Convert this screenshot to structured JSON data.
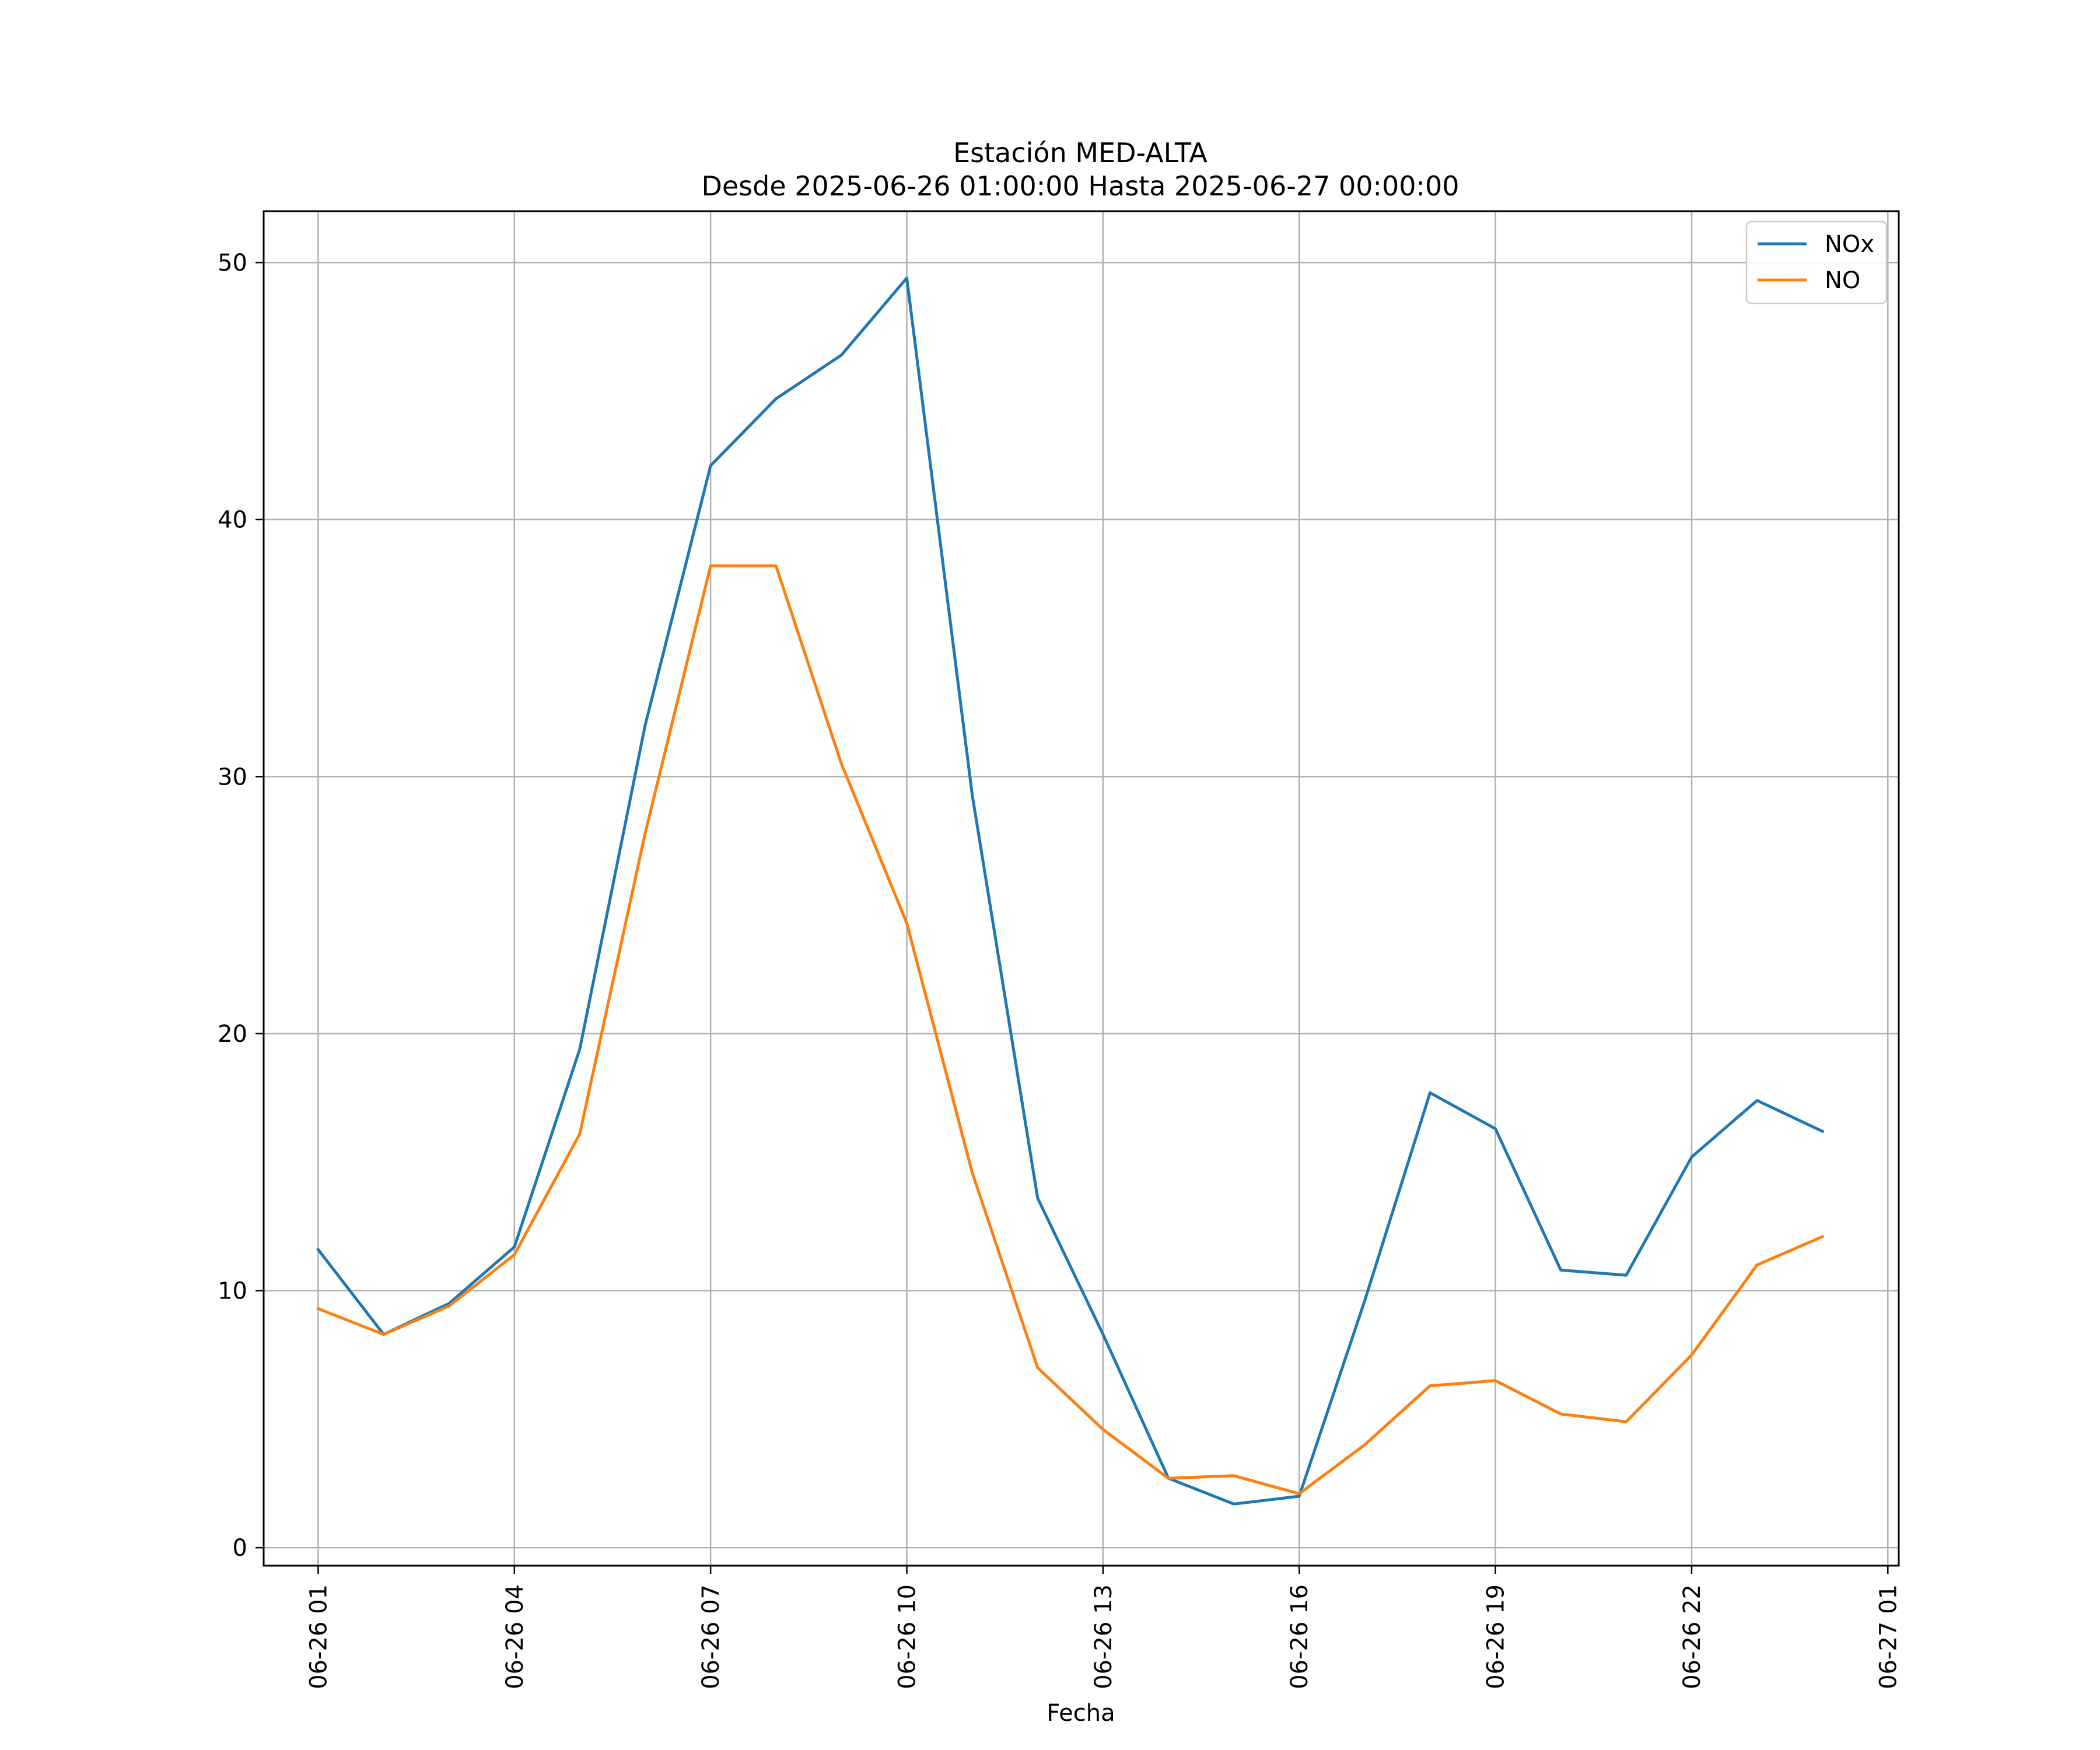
{
  "chart_data": {
    "type": "line",
    "title": "Estación MED-ALTA",
    "subtitle": "Desde 2025-06-26 01:00:00 Hasta 2025-06-27 00:00:00",
    "xlabel": "Fecha",
    "ylabel": "",
    "x": [
      "2025-06-26 01:00",
      "2025-06-26 02:00",
      "2025-06-26 03:00",
      "2025-06-26 04:00",
      "2025-06-26 05:00",
      "2025-06-26 06:00",
      "2025-06-26 07:00",
      "2025-06-26 08:00",
      "2025-06-26 09:00",
      "2025-06-26 10:00",
      "2025-06-26 11:00",
      "2025-06-26 12:00",
      "2025-06-26 13:00",
      "2025-06-26 14:00",
      "2025-06-26 15:00",
      "2025-06-26 16:00",
      "2025-06-26 17:00",
      "2025-06-26 18:00",
      "2025-06-26 19:00",
      "2025-06-26 20:00",
      "2025-06-26 21:00",
      "2025-06-26 22:00",
      "2025-06-26 23:00",
      "2025-06-27 00:00"
    ],
    "series": [
      {
        "name": "NOx",
        "color": "#1f77b4",
        "values": [
          11.6,
          8.3,
          9.5,
          11.7,
          19.4,
          32.0,
          42.1,
          44.7,
          46.4,
          49.4,
          29.3,
          13.6,
          8.3,
          2.7,
          1.7,
          2.0,
          9.6,
          17.7,
          16.3,
          10.8,
          10.6,
          15.2,
          17.4,
          16.2
        ]
      },
      {
        "name": "NO",
        "color": "#ff7f0e",
        "values": [
          9.3,
          8.3,
          9.4,
          11.4,
          16.1,
          27.8,
          38.2,
          38.2,
          30.5,
          24.3,
          14.6,
          7.0,
          4.6,
          2.7,
          2.8,
          2.1,
          4.0,
          6.3,
          6.5,
          5.2,
          4.9,
          7.5,
          11.0,
          12.1
        ]
      }
    ],
    "xlim": [
      "2025-06-26 00:10",
      "2025-06-27 01:10"
    ],
    "ylim": [
      -0.7,
      52.0
    ],
    "xticks": [
      "2025-06-26 01:00",
      "2025-06-26 04:00",
      "2025-06-26 07:00",
      "2025-06-26 10:00",
      "2025-06-26 13:00",
      "2025-06-26 16:00",
      "2025-06-26 19:00",
      "2025-06-26 22:00",
      "2025-06-27 01:00"
    ],
    "xtick_labels": [
      "06-26 01",
      "06-26 04",
      "06-26 07",
      "06-26 10",
      "06-26 13",
      "06-26 16",
      "06-26 19",
      "06-26 22",
      "06-27 01"
    ],
    "yticks": [
      0,
      10,
      20,
      30,
      40,
      50
    ],
    "ytick_labels": [
      "0",
      "10",
      "20",
      "30",
      "40",
      "50"
    ],
    "grid": true,
    "legend": "top-right"
  }
}
